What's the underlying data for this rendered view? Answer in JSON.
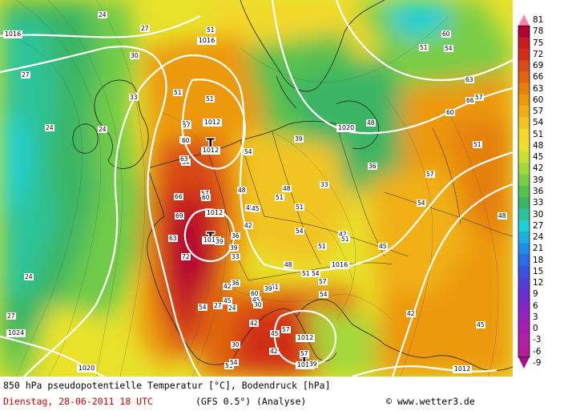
{
  "caption": {
    "title": "850 hPa pseudopotentielle Temperatur [°C], Bodendruck [hPa]",
    "date": "Dienstag, 28-06-2011  18 UTC",
    "model": "(GFS 0.5°)",
    "kind": "(Analyse)",
    "copyright": "© www.wetter3.de"
  },
  "colorbar": {
    "ticks": [
      "81",
      "78",
      "75",
      "72",
      "69",
      "66",
      "63",
      "60",
      "57",
      "54",
      "51",
      "48",
      "45",
      "42",
      "39",
      "36",
      "33",
      "30",
      "27",
      "24",
      "21",
      "18",
      "15",
      "12",
      "9",
      "6",
      "3",
      "0",
      "-3",
      "-6",
      "-9"
    ],
    "colors": [
      "#ff7fb0",
      "#b30032",
      "#c41e1e",
      "#d12d19",
      "#d94a14",
      "#e0650f",
      "#e6800c",
      "#ec990c",
      "#f0b015",
      "#f2c520",
      "#f4d82c",
      "#e8e22c",
      "#c8e030",
      "#a4d83a",
      "#7ccd46",
      "#56c14f",
      "#3ab564",
      "#2dc39a",
      "#1fcfd2",
      "#1faee0",
      "#1f8ee8",
      "#2a6de8",
      "#3a52e0",
      "#5040d8",
      "#6a2fd0",
      "#8226c6",
      "#9622bc",
      "#a620b0",
      "#b220a4",
      "#b41e98",
      "#a8108a"
    ]
  },
  "map": {
    "pressure_labels": [
      "1016",
      "1016",
      "1020",
      "1012",
      "1012",
      "1012",
      "1012",
      "1016",
      "1012",
      "1012",
      "1024",
      "1020",
      "1012"
    ],
    "low_symbol": "T",
    "theta_labels": [
      "24",
      "27",
      "30",
      "33",
      "27",
      "24",
      "24",
      "24",
      "27",
      "51",
      "51",
      "51",
      "51",
      "54",
      "57",
      "57",
      "60",
      "63",
      "66",
      "69",
      "72",
      "63",
      "57",
      "60",
      "45",
      "48",
      "51",
      "54",
      "45",
      "48",
      "51",
      "54",
      "42",
      "39",
      "36",
      "33",
      "36",
      "39",
      "42",
      "45",
      "48",
      "51",
      "51",
      "54",
      "57",
      "54",
      "51",
      "45",
      "42",
      "45",
      "48",
      "51",
      "54",
      "57",
      "60",
      "63",
      "66",
      "57",
      "60",
      "54",
      "51",
      "48",
      "39",
      "36",
      "33",
      "42",
      "51",
      "54",
      "57",
      "60",
      "45",
      "42",
      "39",
      "30",
      "24",
      "27",
      "30",
      "39",
      "42",
      "45",
      "51",
      "54",
      "57"
    ]
  }
}
